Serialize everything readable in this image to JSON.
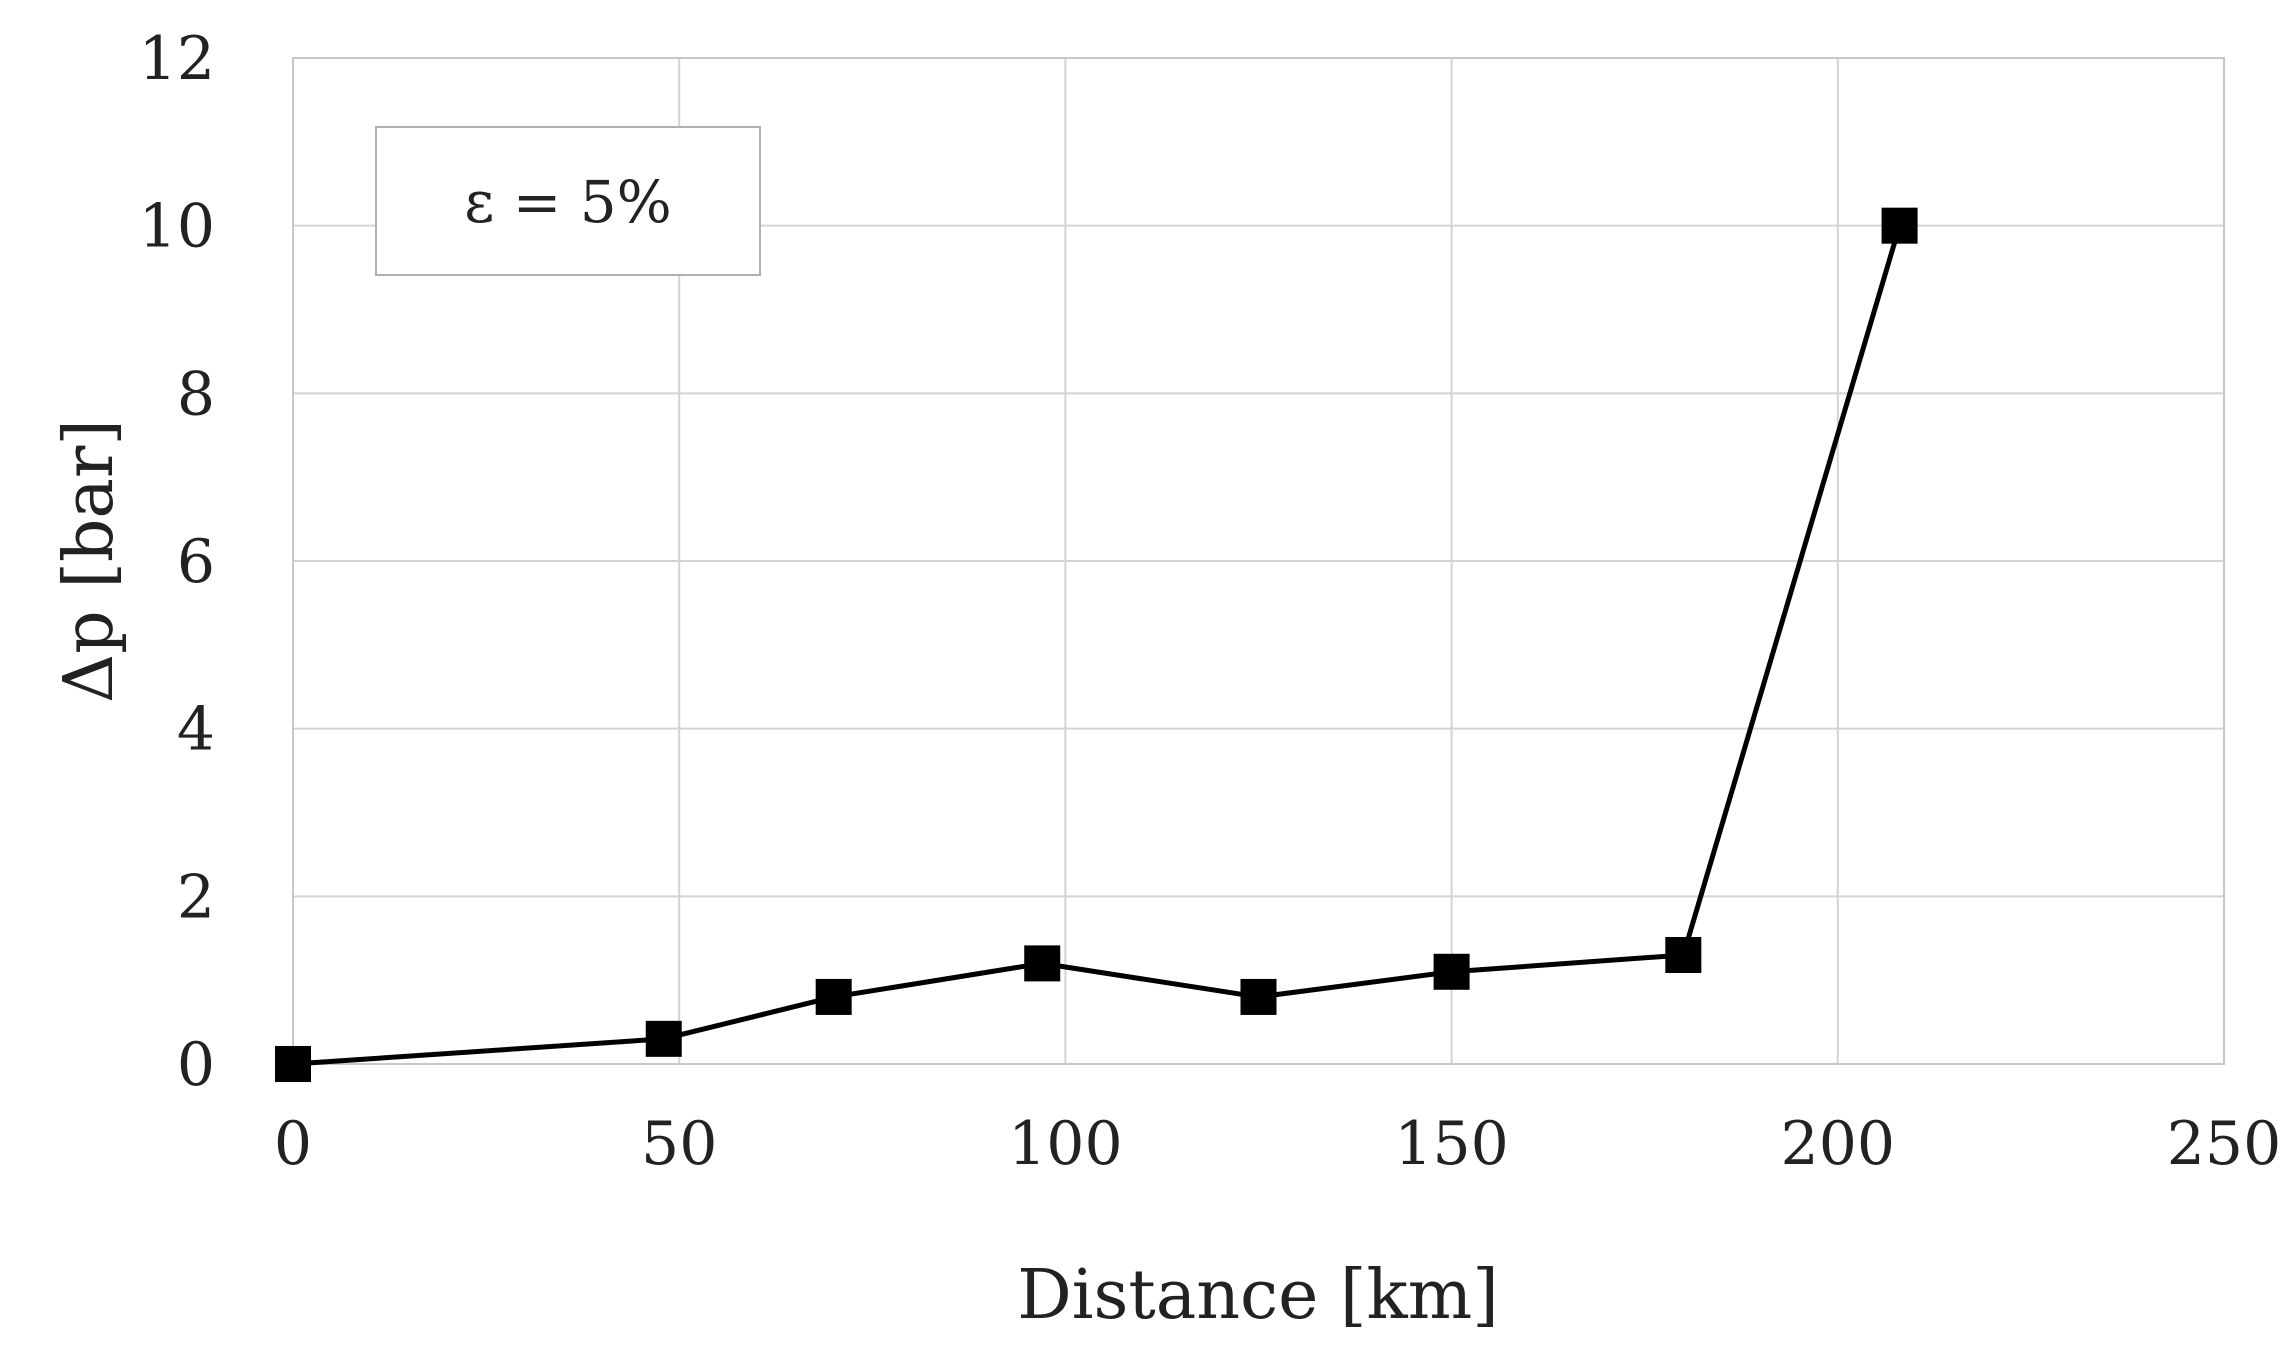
{
  "chart_data": {
    "type": "line",
    "xlabel": "Distance [km]",
    "ylabel": "Δp [bar]",
    "annotation": "ε = 5%",
    "xlim": [
      0,
      250
    ],
    "ylim": [
      0,
      12
    ],
    "xticks": [
      0,
      50,
      100,
      150,
      200,
      250
    ],
    "yticks": [
      0,
      2,
      4,
      6,
      8,
      10,
      12
    ],
    "xtick_labels": [
      "0",
      "50",
      "100",
      "150",
      "200",
      "250"
    ],
    "ytick_labels": [
      "0",
      "2",
      "4",
      "6",
      "8",
      "10",
      "12"
    ],
    "grid": true,
    "series": [
      {
        "x": [
          0,
          48,
          70,
          97,
          125,
          150,
          180,
          208
        ],
        "y": [
          0,
          0.3,
          0.8,
          1.2,
          0.8,
          1.1,
          1.3,
          10
        ],
        "color": "#000000",
        "marker": "square"
      }
    ]
  }
}
